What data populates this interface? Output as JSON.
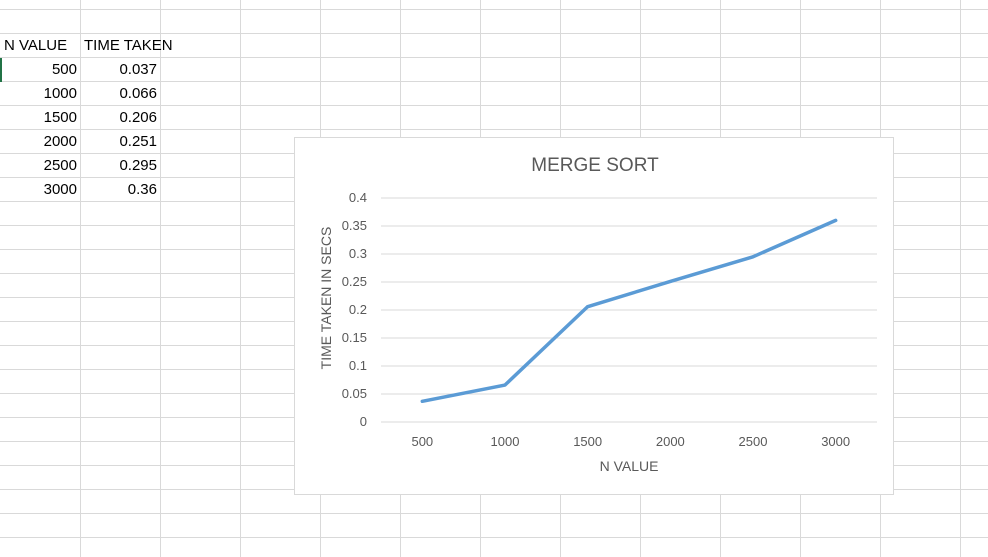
{
  "sheet": {
    "headers": [
      "N VALUE",
      "TIME TAKEN"
    ],
    "rows": [
      {
        "n": "500",
        "time": "0.037"
      },
      {
        "n": "1000",
        "time": "0.066"
      },
      {
        "n": "1500",
        "time": "0.206"
      },
      {
        "n": "2000",
        "time": "0.251"
      },
      {
        "n": "2500",
        "time": "0.295"
      },
      {
        "n": "3000",
        "time": "0.36"
      }
    ]
  },
  "chart_data": {
    "type": "line",
    "title": "MERGE SORT",
    "xlabel": "N VALUE",
    "ylabel": "TIME TAKEN IN SECS",
    "categories": [
      "500",
      "1000",
      "1500",
      "2000",
      "2500",
      "3000"
    ],
    "series": [
      {
        "values": [
          0.037,
          0.066,
          0.206,
          0.251,
          0.295,
          0.36
        ],
        "color": "#5b9bd5"
      }
    ],
    "ylim": [
      0,
      0.4
    ],
    "yticks": [
      "0",
      "0.05",
      "0.1",
      "0.15",
      "0.2",
      "0.25",
      "0.3",
      "0.35",
      "0.4"
    ],
    "grid": true,
    "legend": "none"
  }
}
